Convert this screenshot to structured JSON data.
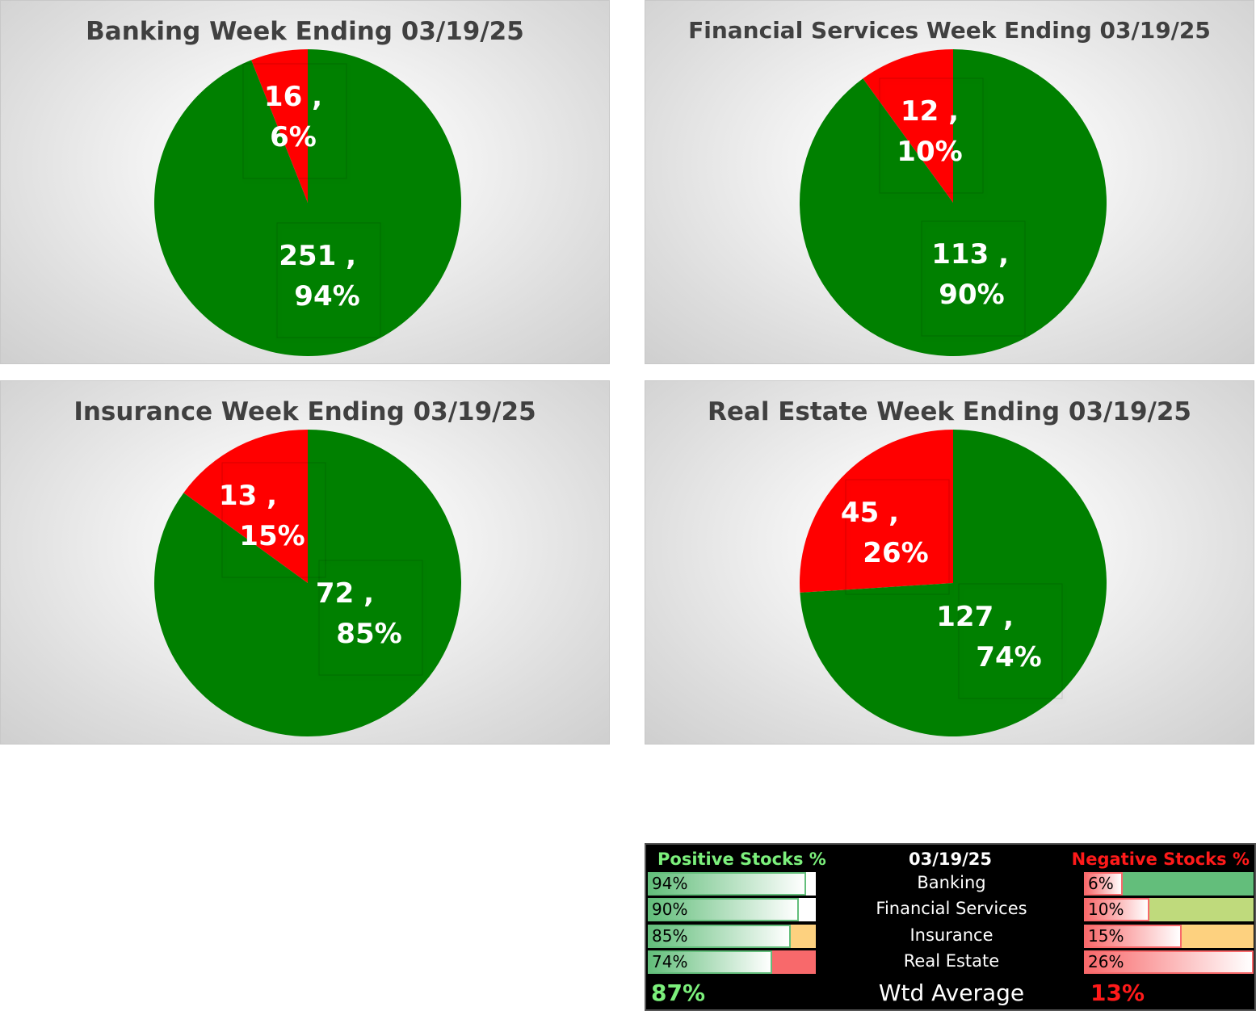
{
  "chart_data": [
    {
      "type": "pie",
      "title": "Banking Week Ending 03/19/25",
      "slices": [
        {
          "name": "Negative",
          "count": 16,
          "percent": 6,
          "label": "16 ,|6%",
          "color": "#ff0000"
        },
        {
          "name": "Positive",
          "count": 251,
          "percent": 94,
          "label": "251 ,|94%",
          "color": "#008000"
        }
      ]
    },
    {
      "type": "pie",
      "title": "Financial Services Week Ending 03/19/25",
      "slices": [
        {
          "name": "Negative",
          "count": 12,
          "percent": 10,
          "label": "12 ,|10%",
          "color": "#ff0000"
        },
        {
          "name": "Positive",
          "count": 113,
          "percent": 90,
          "label": "113 ,|90%",
          "color": "#008000"
        }
      ]
    },
    {
      "type": "pie",
      "title": "Insurance Week Ending 03/19/25",
      "slices": [
        {
          "name": "Negative",
          "count": 13,
          "percent": 15,
          "label": "13 ,|15%",
          "color": "#ff0000"
        },
        {
          "name": "Positive",
          "count": 72,
          "percent": 85,
          "label": "72 ,|85%",
          "color": "#008000"
        }
      ]
    },
    {
      "type": "pie",
      "title": "Real Estate Week Ending 03/19/25",
      "slices": [
        {
          "name": "Negative",
          "count": 45,
          "percent": 26,
          "label": "45 ,|26%",
          "color": "#ff0000"
        },
        {
          "name": "Positive",
          "count": 127,
          "percent": 74,
          "label": "127 ,|74%",
          "color": "#008000"
        }
      ]
    }
  ],
  "summary": {
    "positive_header": "Positive Stocks %",
    "date": "03/19/25",
    "negative_header": "Negative Stocks %",
    "rows": [
      {
        "name": "Banking",
        "pos": "94%",
        "pos_value": 94,
        "neg": "6%",
        "neg_value": 6,
        "pos_bg": "#ffffff",
        "neg_bg": "#63be7b"
      },
      {
        "name": "Financial Services",
        "pos": "90%",
        "pos_value": 90,
        "neg": "10%",
        "neg_value": 10,
        "pos_bg": "#ffffff",
        "neg_bg": "#bfda7c"
      },
      {
        "name": "Insurance",
        "pos": "85%",
        "pos_value": 85,
        "neg": "15%",
        "neg_value": 15,
        "pos_bg": "#fdd17f",
        "neg_bg": "#fdd17f"
      },
      {
        "name": "Real Estate",
        "pos": "74%",
        "pos_value": 74,
        "neg": "26%",
        "neg_value": 26,
        "pos_bg": "#f8696b",
        "neg_bg": "#ffffff"
      }
    ],
    "footer_label": "Wtd Average",
    "avg_pos": "87%",
    "avg_neg": "13%"
  }
}
